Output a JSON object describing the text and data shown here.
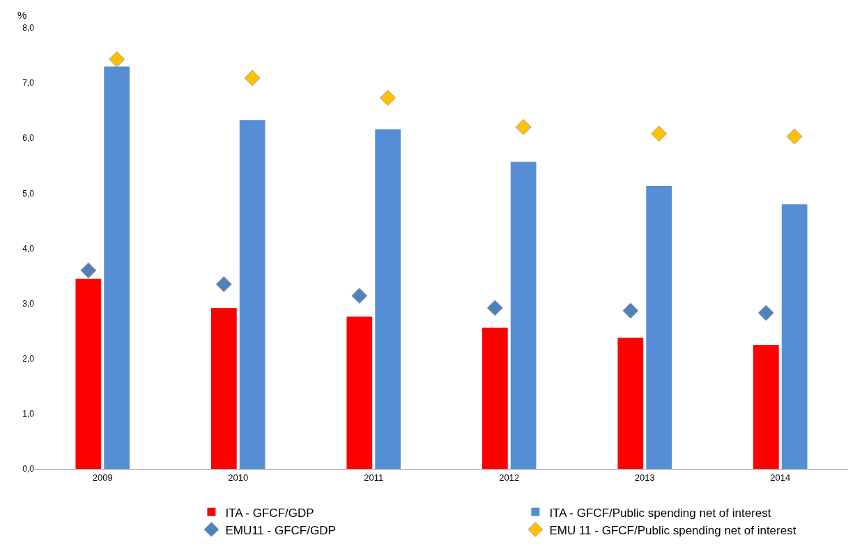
{
  "chart_data": {
    "type": "bar",
    "ylabel": "%",
    "categories": [
      "2009",
      "2010",
      "2011",
      "2012",
      "2013",
      "2014"
    ],
    "ylim": [
      0,
      8
    ],
    "yticks": [
      {
        "value": 0,
        "label": "0,0"
      },
      {
        "value": 1,
        "label": "1,0"
      },
      {
        "value": 2,
        "label": "2,0"
      },
      {
        "value": 3,
        "label": "3,0"
      },
      {
        "value": 4,
        "label": "4,0"
      },
      {
        "value": 5,
        "label": "5,0"
      },
      {
        "value": 6,
        "label": "6,0"
      },
      {
        "value": 7,
        "label": "7,0"
      },
      {
        "value": 8,
        "label": "8,0"
      }
    ],
    "grid": false,
    "legend": "bottom",
    "series": [
      {
        "name": "ITA - GFCF/GDP",
        "type": "bar",
        "color": "#ff0000",
        "values": [
          3.45,
          2.92,
          2.76,
          2.56,
          2.38,
          2.25
        ]
      },
      {
        "name": "ITA - GFCF/Public spending net of interest",
        "type": "bar",
        "color": "#558ed5",
        "values": [
          7.3,
          6.33,
          6.16,
          5.57,
          5.13,
          4.8
        ]
      },
      {
        "name": "EMU11 - GFCF/GDP",
        "type": "scatter",
        "marker": "diamond",
        "color": "#4f81bd",
        "values": [
          3.6,
          3.35,
          3.14,
          2.92,
          2.87,
          2.83
        ]
      },
      {
        "name": "EMU 11 - GFCF/Public spending net of interest",
        "type": "scatter",
        "marker": "diamond",
        "color": "#ffc000",
        "values": [
          7.43,
          7.09,
          6.73,
          6.2,
          6.08,
          6.03
        ]
      }
    ]
  }
}
